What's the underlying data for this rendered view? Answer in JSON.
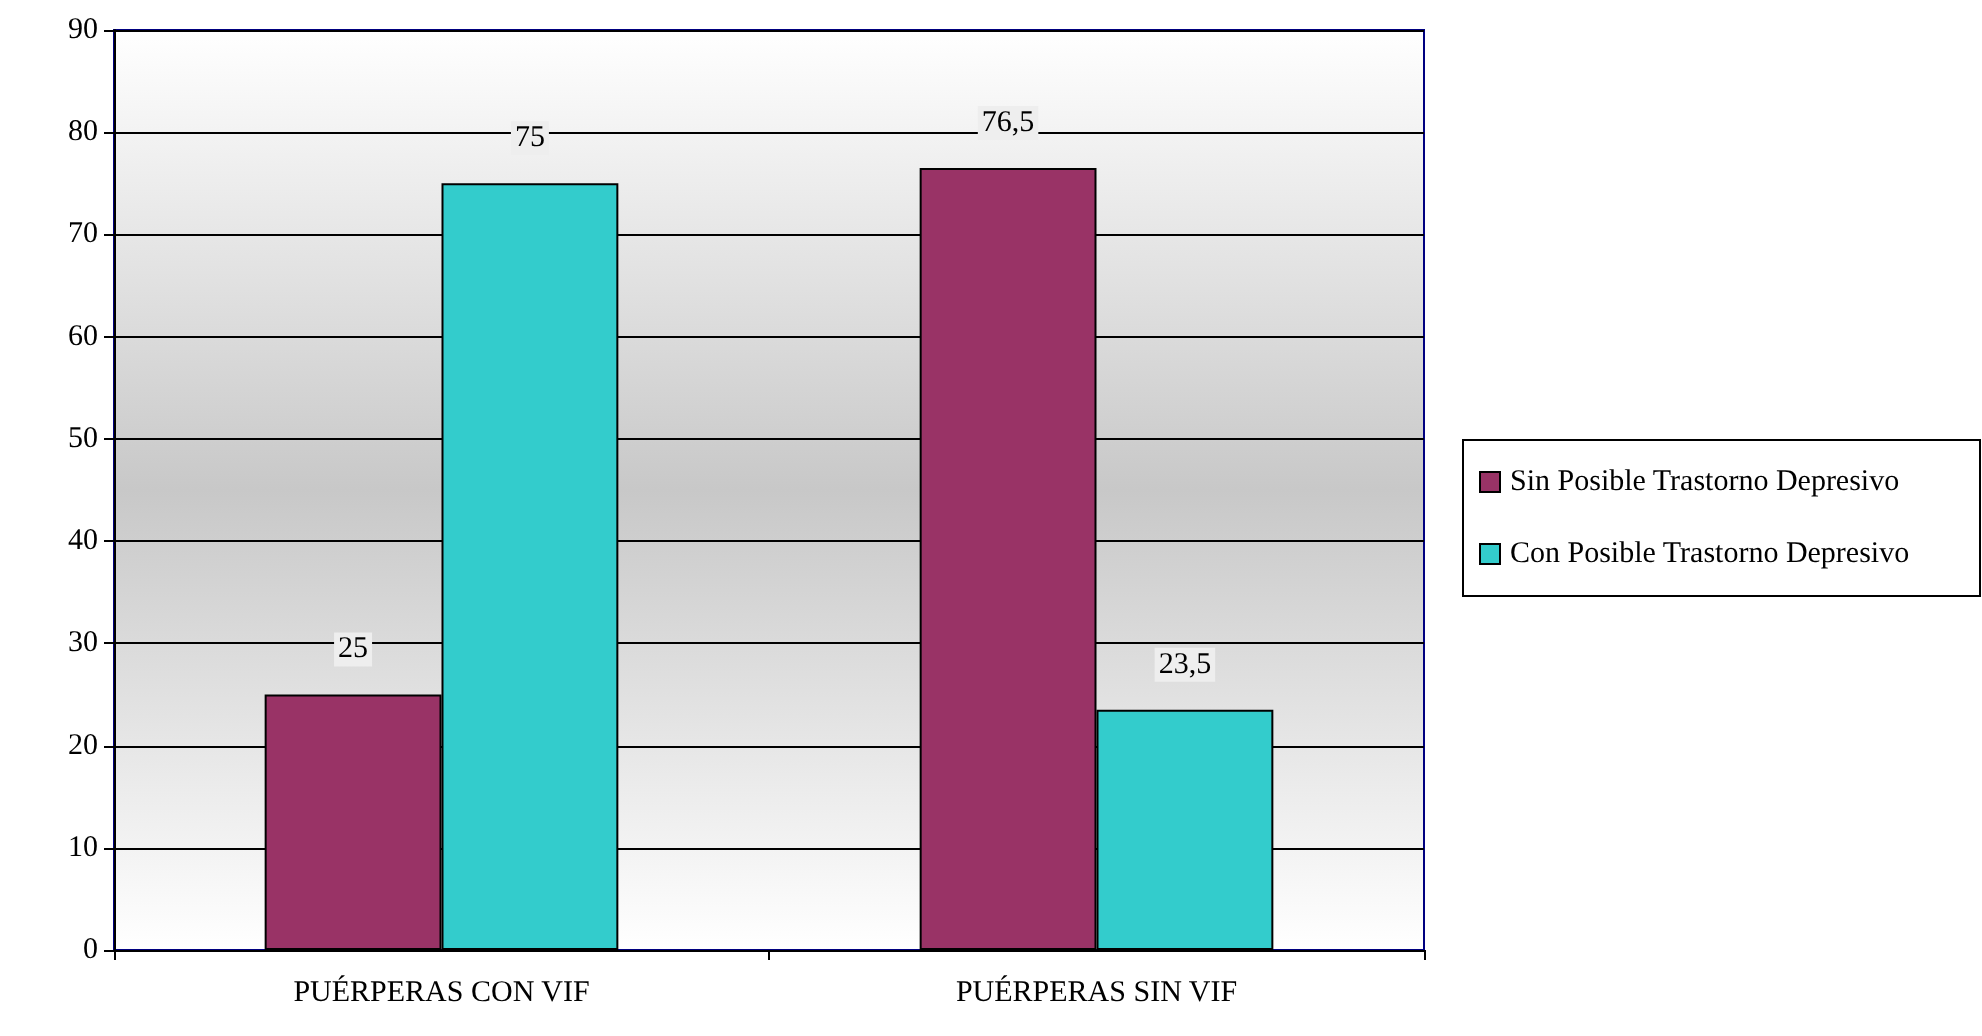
{
  "chart_data": {
    "type": "bar",
    "categories": [
      "PUÉRPERAS CON VIF",
      "PUÉRPERAS SIN VIF"
    ],
    "series": [
      {
        "name": "Sin Posible Trastorno Depresivo",
        "color": "#993366",
        "values": [
          25,
          76.5
        ],
        "value_labels": [
          "25",
          "76,5"
        ]
      },
      {
        "name": "Con Posible Trastorno Depresivo",
        "color": "#33cccc",
        "values": [
          75,
          23.5
        ],
        "value_labels": [
          "75",
          "23,5"
        ]
      }
    ],
    "ylim": [
      0,
      90
    ],
    "yticks": [
      0,
      10,
      20,
      30,
      40,
      50,
      60,
      70,
      80,
      90
    ],
    "grid": "y",
    "legend": "right"
  }
}
